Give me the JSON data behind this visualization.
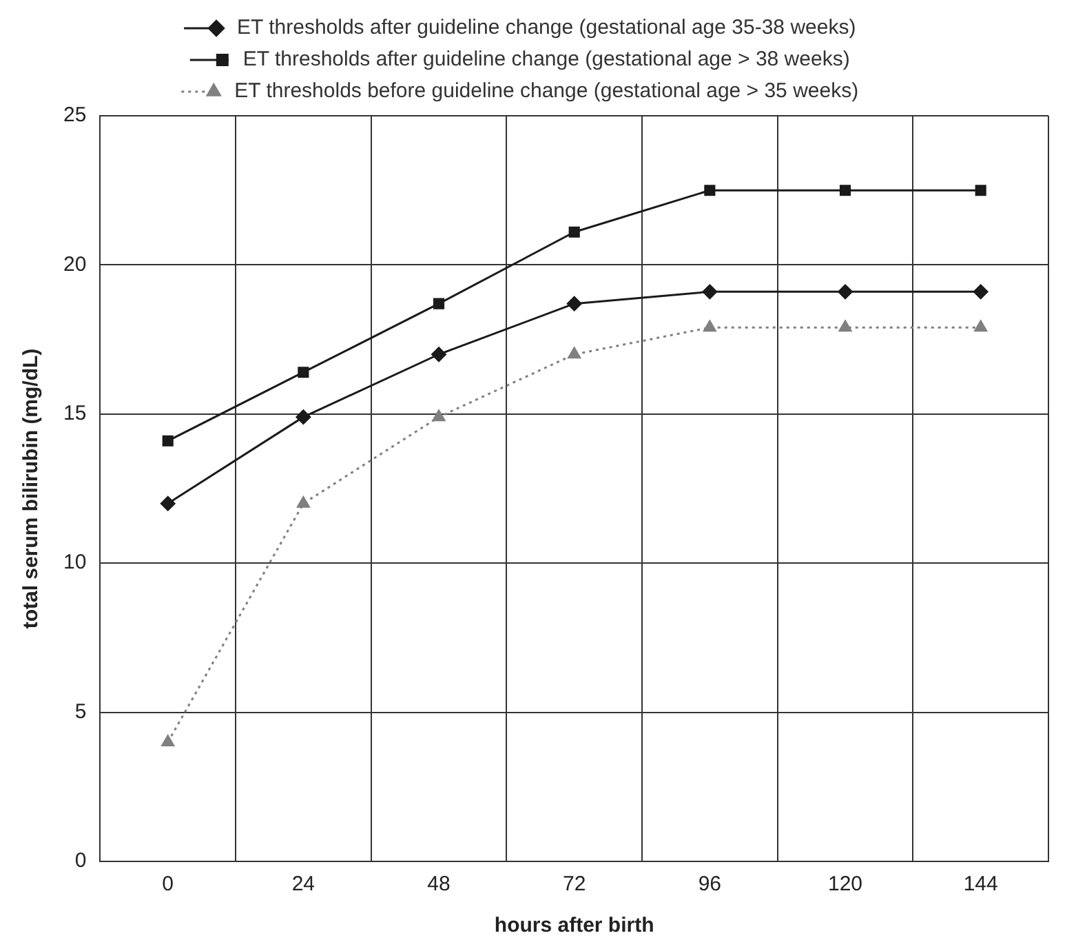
{
  "chart_data": {
    "type": "line",
    "xlabel": "hours after birth",
    "ylabel": "total serum bilirubin (mg/dL)",
    "categories": [
      "0",
      "24",
      "48",
      "72",
      "96",
      "120",
      "144"
    ],
    "series": [
      {
        "name": "ET thresholds after guideline change (gestational age 35-38 weeks)",
        "color": "#1a1a1a",
        "marker": "diamond",
        "line_style": "solid",
        "values": [
          12,
          14.9,
          17,
          18.7,
          19.1,
          19.1,
          19.1
        ]
      },
      {
        "name": "ET thresholds after guideline change (gestational age > 38 weeks)",
        "color": "#1a1a1a",
        "marker": "square",
        "line_style": "solid",
        "values": [
          14.1,
          16.4,
          18.7,
          21.1,
          22.5,
          22.5,
          22.5
        ]
      },
      {
        "name": "ET thresholds before guideline change (gestational age > 35 weeks)",
        "color": "#808080",
        "marker": "triangle",
        "line_style": "dotted",
        "values": [
          4,
          12,
          14.9,
          17,
          17.9,
          17.9,
          17.9
        ]
      }
    ],
    "ylim": [
      0,
      25
    ],
    "yticks": [
      0,
      5,
      10,
      15,
      20,
      25
    ],
    "grid": true,
    "legend": "top"
  }
}
